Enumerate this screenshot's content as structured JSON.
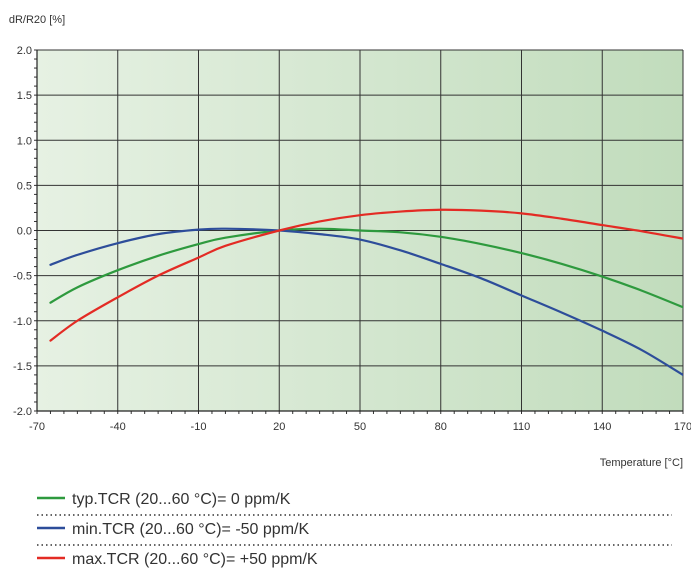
{
  "chart_data": {
    "type": "line",
    "title": "",
    "ylabel": "dR/R20 [%]",
    "xlabel": "Temperature [°C]",
    "xlim": [
      -70,
      170
    ],
    "ylim": [
      -2.0,
      2.0
    ],
    "x_ticks": [
      -70,
      -40,
      -10,
      20,
      50,
      80,
      110,
      140,
      170
    ],
    "x_tick_labels": [
      "-70",
      "-40",
      "-10",
      "20",
      "50",
      "80",
      "110",
      "140",
      "170"
    ],
    "y_ticks": [
      2.0,
      1.5,
      1.0,
      0.5,
      0.0,
      -0.5,
      -1.0,
      -1.5,
      -2.0
    ],
    "y_tick_labels": [
      "2.0",
      "1.5",
      "1.0",
      "0.5",
      "0.0",
      "-0.5",
      "-1.0",
      "-1.5",
      "-2.0"
    ],
    "grid": true,
    "legend_position": "bottom",
    "background_gradient": [
      "#e6f1e3",
      "#c1dcbc"
    ],
    "x": [
      -65,
      -55,
      -40,
      -25,
      -10,
      0,
      20,
      35,
      50,
      65,
      80,
      95,
      110,
      125,
      140,
      155,
      170
    ],
    "series": [
      {
        "name": "typ.TCR (20...60 °C)= 0 ppm/K",
        "color": "#2e9a3e",
        "values": [
          -0.8,
          -0.63,
          -0.44,
          -0.28,
          -0.15,
          -0.08,
          0.0,
          0.02,
          0.0,
          -0.02,
          -0.07,
          -0.15,
          -0.25,
          -0.37,
          -0.51,
          -0.67,
          -0.85
        ]
      },
      {
        "name": "min.TCR (20...60 °C)= -50 ppm/K",
        "color": "#2d4d9a",
        "values": [
          -0.38,
          -0.27,
          -0.14,
          -0.04,
          0.01,
          0.02,
          0.0,
          -0.04,
          -0.1,
          -0.22,
          -0.37,
          -0.53,
          -0.72,
          -0.91,
          -1.11,
          -1.33,
          -1.6
        ]
      },
      {
        "name": "max.TCR (20...60 °C)= +50 ppm/K",
        "color": "#e32b24",
        "values": [
          -1.22,
          -1.0,
          -0.74,
          -0.5,
          -0.3,
          -0.17,
          0.0,
          0.1,
          0.17,
          0.21,
          0.23,
          0.22,
          0.19,
          0.13,
          0.06,
          -0.01,
          -0.09
        ]
      }
    ]
  }
}
